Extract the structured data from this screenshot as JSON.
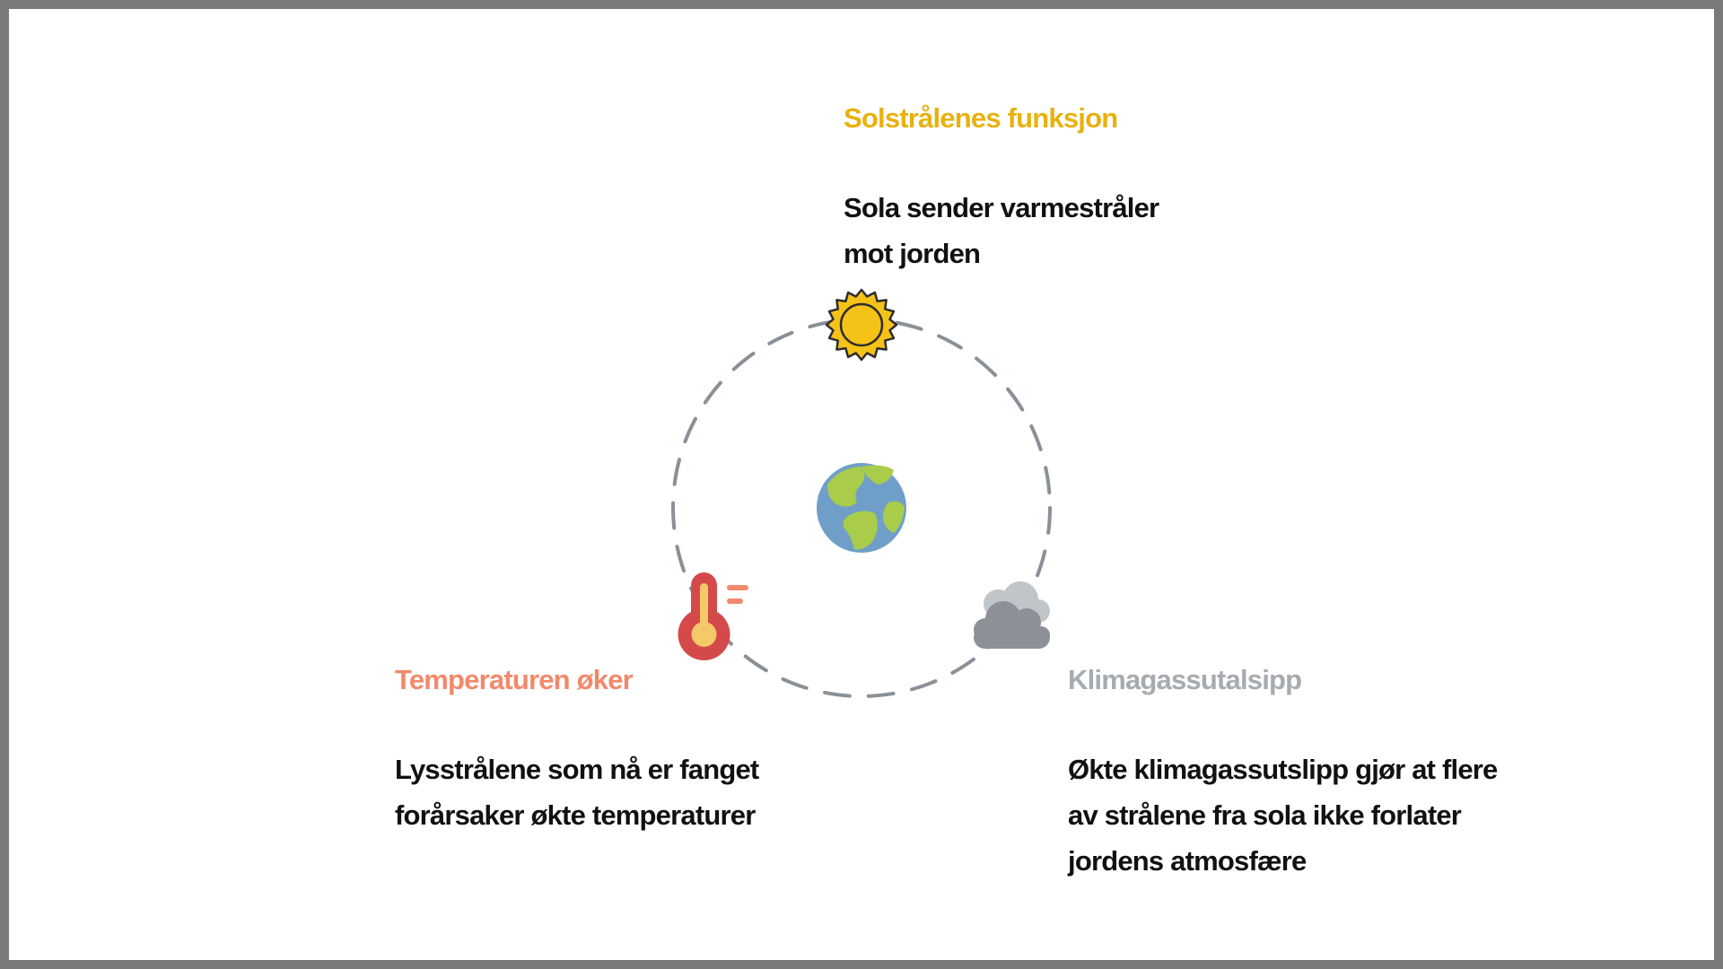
{
  "colors": {
    "sun_heading": "#e8b10e",
    "temperature_heading": "#f2896b",
    "emissions_heading": "#a6abb0",
    "body_text": "#111111",
    "orbit": "#8a9097"
  },
  "sun_section": {
    "icon": "sun-icon",
    "heading": "Solstrålenes funksjon",
    "line1": "Sola sender varmestråler",
    "line2": "mot jorden"
  },
  "center": {
    "icon": "earth-globe-icon"
  },
  "temperature_section": {
    "icon": "thermometer-icon",
    "heading": "Temperaturen øker",
    "line1": "Lysstrålene som nå er fanget",
    "line2": "forårsaker økte temperaturer"
  },
  "emissions_section": {
    "icon": "cloud-icon",
    "heading": "Klimagassutalsipp",
    "line1": "Økte klimagassutslipp gjør at flere",
    "line2": "av strålene fra sola ikke forlater",
    "line3": "jordens atmosfære"
  }
}
